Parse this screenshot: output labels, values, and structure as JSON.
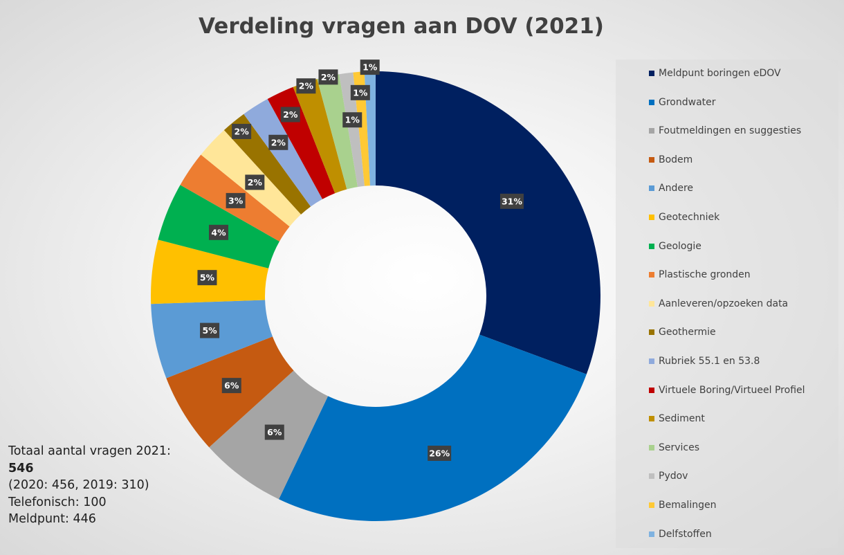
{
  "chart_data": {
    "type": "pie",
    "variant": "donut",
    "title": "Verdeling vragen aan DOV (2021)",
    "legend_position": "right",
    "categories": [
      "Meldpunt boringen eDOV",
      "Grondwater",
      "Foutmeldingen en suggesties",
      "Bodem",
      "Andere",
      "Geotechniek",
      "Geologie",
      "Plastische gronden",
      "Aanleveren/opzoeken data",
      "Geothermie",
      "Rubriek 55.1 en 53.8",
      "Virtuele Boring/Virtueel Profiel",
      "Sediment",
      "Services",
      "Pydov",
      "Bemalingen",
      "Delfstoffen"
    ],
    "values": [
      30.7,
      26.5,
      6.2,
      5.8,
      5.4,
      4.6,
      4.2,
      2.6,
      2.4,
      1.8,
      2.0,
      2.0,
      1.8,
      1.6,
      1.0,
      0.8,
      0.8
    ],
    "data_labels": [
      "31%",
      "26%",
      "6%",
      "6%",
      "5%",
      "5%",
      "4%",
      "3%",
      "2%",
      "2%",
      "2%",
      "2%",
      "2%",
      "2%",
      "1%",
      "1%",
      "1%"
    ],
    "colors": [
      "#002060",
      "#0070C0",
      "#A5A5A5",
      "#C55A11",
      "#5B9BD5",
      "#FFC000",
      "#00B050",
      "#ED7D31",
      "#FFE699",
      "#997300",
      "#8FAADC",
      "#C00000",
      "#BF8F00",
      "#A9D18E",
      "#BFBFBF",
      "#FFC935",
      "#7FB2E0"
    ]
  },
  "note": {
    "line1": "Totaal aantal vragen 2021:",
    "total": "546",
    "line3": "(2020: 456, 2019: 310)",
    "line4": "Telefonisch: 100",
    "line5": "Meldpunt: 446"
  }
}
